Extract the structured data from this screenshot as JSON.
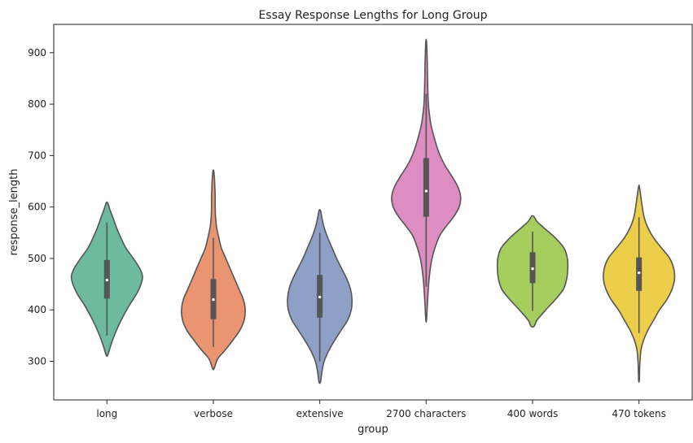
{
  "chart_data": {
    "type": "violin",
    "title": "Essay Response Lengths for Long Group",
    "xlabel": "group",
    "ylabel": "response_length",
    "ylim": [
      225,
      955
    ],
    "yticks": [
      300,
      400,
      500,
      600,
      700,
      800,
      900
    ],
    "grid": false,
    "series": [
      {
        "name": "long",
        "color": "#6dba9f",
        "kde_min": 312,
        "kde_max": 608,
        "whisker_min": 350,
        "whisker_max": 570,
        "q1": 422,
        "median": 458,
        "q3": 497,
        "density": [
          [
            312,
            0.02
          ],
          [
            330,
            0.1
          ],
          [
            350,
            0.2
          ],
          [
            370,
            0.32
          ],
          [
            390,
            0.46
          ],
          [
            410,
            0.62
          ],
          [
            430,
            0.8
          ],
          [
            450,
            0.93
          ],
          [
            465,
            0.97
          ],
          [
            480,
            0.9
          ],
          [
            500,
            0.72
          ],
          [
            520,
            0.52
          ],
          [
            540,
            0.38
          ],
          [
            560,
            0.26
          ],
          [
            580,
            0.16
          ],
          [
            595,
            0.08
          ],
          [
            608,
            0.02
          ]
        ]
      },
      {
        "name": "verbose",
        "color": "#ea9472",
        "kde_min": 286,
        "kde_max": 670,
        "whisker_min": 328,
        "whisker_max": 540,
        "q1": 382,
        "median": 420,
        "q3": 460,
        "density": [
          [
            286,
            0.02
          ],
          [
            305,
            0.12
          ],
          [
            320,
            0.3
          ],
          [
            340,
            0.52
          ],
          [
            360,
            0.72
          ],
          [
            380,
            0.84
          ],
          [
            400,
            0.87
          ],
          [
            420,
            0.82
          ],
          [
            440,
            0.7
          ],
          [
            460,
            0.58
          ],
          [
            480,
            0.46
          ],
          [
            500,
            0.34
          ],
          [
            520,
            0.22
          ],
          [
            540,
            0.15
          ],
          [
            560,
            0.09
          ],
          [
            580,
            0.06
          ],
          [
            600,
            0.05
          ],
          [
            620,
            0.05
          ],
          [
            640,
            0.04
          ],
          [
            655,
            0.03
          ],
          [
            670,
            0.01
          ]
        ]
      },
      {
        "name": "extensive",
        "color": "#8fa0c7",
        "kde_min": 260,
        "kde_max": 593,
        "whisker_min": 300,
        "whisker_max": 550,
        "q1": 385,
        "median": 425,
        "q3": 468,
        "density": [
          [
            260,
            0.02
          ],
          [
            280,
            0.06
          ],
          [
            300,
            0.12
          ],
          [
            320,
            0.24
          ],
          [
            340,
            0.4
          ],
          [
            360,
            0.58
          ],
          [
            380,
            0.76
          ],
          [
            400,
            0.86
          ],
          [
            420,
            0.88
          ],
          [
            440,
            0.84
          ],
          [
            460,
            0.74
          ],
          [
            480,
            0.6
          ],
          [
            500,
            0.46
          ],
          [
            520,
            0.34
          ],
          [
            540,
            0.22
          ],
          [
            560,
            0.12
          ],
          [
            578,
            0.06
          ],
          [
            593,
            0.02
          ]
        ]
      },
      {
        "name": "2700 characters",
        "color": "#dd8dc1",
        "kde_min": 381,
        "kde_max": 921,
        "whisker_min": 445,
        "whisker_max": 820,
        "q1": 581,
        "median": 631,
        "q3": 695,
        "density": [
          [
            381,
            0.01
          ],
          [
            420,
            0.04
          ],
          [
            460,
            0.08
          ],
          [
            500,
            0.16
          ],
          [
            540,
            0.34
          ],
          [
            560,
            0.52
          ],
          [
            580,
            0.74
          ],
          [
            600,
            0.9
          ],
          [
            620,
            0.94
          ],
          [
            640,
            0.86
          ],
          [
            660,
            0.7
          ],
          [
            680,
            0.52
          ],
          [
            700,
            0.38
          ],
          [
            720,
            0.28
          ],
          [
            740,
            0.2
          ],
          [
            760,
            0.13
          ],
          [
            780,
            0.09
          ],
          [
            800,
            0.06
          ],
          [
            840,
            0.04
          ],
          [
            880,
            0.03
          ],
          [
            921,
            0.01
          ]
        ]
      },
      {
        "name": "400 words",
        "color": "#a6ce5e",
        "kde_min": 368,
        "kde_max": 582,
        "whisker_min": 398,
        "whisker_max": 552,
        "q1": 452,
        "median": 480,
        "q3": 512,
        "density": [
          [
            368,
            0.04
          ],
          [
            380,
            0.12
          ],
          [
            400,
            0.36
          ],
          [
            420,
            0.62
          ],
          [
            440,
            0.84
          ],
          [
            460,
            0.93
          ],
          [
            480,
            0.96
          ],
          [
            500,
            0.95
          ],
          [
            520,
            0.86
          ],
          [
            540,
            0.62
          ],
          [
            560,
            0.3
          ],
          [
            572,
            0.12
          ],
          [
            582,
            0.03
          ]
        ]
      },
      {
        "name": "470 tokens",
        "color": "#ecce4a",
        "kde_min": 263,
        "kde_max": 640,
        "whisker_min": 355,
        "whisker_max": 580,
        "q1": 437,
        "median": 472,
        "q3": 502,
        "density": [
          [
            263,
            0.01
          ],
          [
            290,
            0.02
          ],
          [
            320,
            0.05
          ],
          [
            340,
            0.12
          ],
          [
            360,
            0.24
          ],
          [
            380,
            0.4
          ],
          [
            400,
            0.56
          ],
          [
            420,
            0.76
          ],
          [
            440,
            0.9
          ],
          [
            460,
            0.97
          ],
          [
            480,
            0.95
          ],
          [
            500,
            0.84
          ],
          [
            520,
            0.62
          ],
          [
            540,
            0.4
          ],
          [
            560,
            0.24
          ],
          [
            580,
            0.14
          ],
          [
            600,
            0.09
          ],
          [
            620,
            0.05
          ],
          [
            640,
            0.01
          ]
        ]
      }
    ]
  }
}
